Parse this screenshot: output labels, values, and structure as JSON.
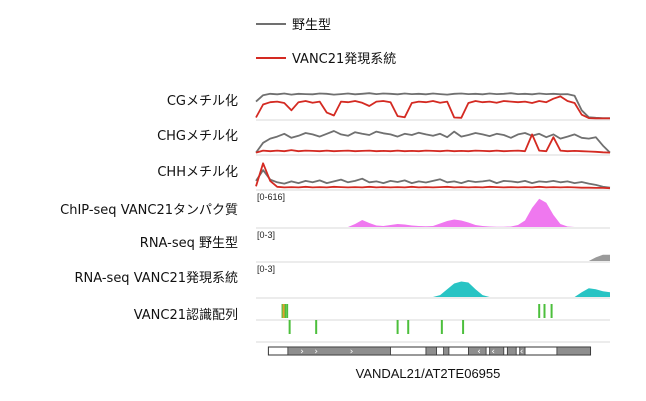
{
  "legend": {
    "wild_type": "野生型",
    "vanc21": "VANC21発現系統"
  },
  "colors": {
    "wild_type": "#707070",
    "vanc21": "#d42a22",
    "chip": "#ef78ef",
    "rna": "#28c4c4",
    "rna_wt": "#9a9a9a",
    "motif": "#4cbf3c",
    "motif_alt": "#e0a030",
    "exon": "#8e8e8e",
    "track_border": "#d8d8d8"
  },
  "tracks": {
    "cg": "CGメチル化",
    "chg": "CHGメチル化",
    "chh": "CHHメチル化",
    "chip": "ChIP-seq VANC21タンパク質",
    "rna_wt": "RNA-seq 野生型",
    "rna_vanc": "RNA-seq VANC21発現系統",
    "motif": "VANC21認識配列"
  },
  "ranges": {
    "chip": "[0-616]",
    "rna_wt": "[0-3]",
    "rna_vanc": "[0-3]"
  },
  "gene_label": "VANDAL21/AT2TE06955",
  "chart_data": {
    "type": "area",
    "x": [
      0,
      2,
      4,
      6,
      8,
      10,
      12,
      14,
      16,
      18,
      20,
      22,
      24,
      26,
      28,
      30,
      32,
      34,
      36,
      38,
      40,
      42,
      44,
      46,
      48,
      50,
      52,
      54,
      56,
      58,
      60,
      62,
      64,
      66,
      68,
      70,
      72,
      74,
      76,
      78,
      80,
      82,
      84,
      86,
      88,
      90,
      92,
      94,
      96,
      98,
      100
    ],
    "xlim": [
      0,
      100
    ],
    "tracks": [
      {
        "name": "CGメチル化",
        "ylim": [
          0,
          1
        ],
        "series": [
          {
            "name": "野生型",
            "values": [
              0.6,
              0.82,
              0.87,
              0.85,
              0.88,
              0.84,
              0.87,
              0.86,
              0.85,
              0.88,
              0.87,
              0.84,
              0.86,
              0.88,
              0.85,
              0.87,
              0.89,
              0.86,
              0.88,
              0.87,
              0.85,
              0.88,
              0.86,
              0.87,
              0.85,
              0.88,
              0.86,
              0.84,
              0.87,
              0.88,
              0.86,
              0.87,
              0.85,
              0.88,
              0.86,
              0.87,
              0.89,
              0.86,
              0.87,
              0.85,
              0.88,
              0.86,
              0.87,
              0.85,
              0.86,
              0.8,
              0.3,
              0.06,
              0.04,
              0.03,
              0.03
            ]
          },
          {
            "name": "VANC21発現系統",
            "values": [
              0.05,
              0.5,
              0.58,
              0.6,
              0.55,
              0.3,
              0.58,
              0.62,
              0.56,
              0.6,
              0.22,
              0.12,
              0.6,
              0.58,
              0.62,
              0.56,
              0.45,
              0.6,
              0.62,
              0.58,
              0.1,
              0.06,
              0.55,
              0.6,
              0.58,
              0.62,
              0.56,
              0.6,
              0.05,
              0.04,
              0.55,
              0.62,
              0.58,
              0.6,
              0.56,
              0.62,
              0.6,
              0.58,
              0.6,
              0.55,
              0.62,
              0.58,
              0.7,
              0.78,
              0.62,
              0.55,
              0.15,
              0.03,
              0.02,
              0.02,
              0.02
            ]
          }
        ]
      },
      {
        "name": "CHGメチル化",
        "ylim": [
          0,
          1
        ],
        "series": [
          {
            "name": "野生型",
            "values": [
              0.05,
              0.4,
              0.55,
              0.62,
              0.72,
              0.58,
              0.65,
              0.75,
              0.7,
              0.62,
              0.72,
              0.82,
              0.7,
              0.65,
              0.78,
              0.72,
              0.68,
              0.8,
              0.74,
              0.7,
              0.62,
              0.72,
              0.68,
              0.76,
              0.7,
              0.65,
              0.72,
              0.6,
              0.8,
              0.62,
              0.68,
              0.75,
              0.7,
              0.64,
              0.72,
              0.68,
              0.58,
              0.7,
              0.75,
              0.65,
              0.72,
              0.6,
              0.7,
              0.55,
              0.62,
              0.7,
              0.58,
              0.55,
              0.6,
              0.3,
              0.05
            ]
          },
          {
            "name": "VANC21発現系統",
            "values": [
              0.05,
              0.12,
              0.1,
              0.12,
              0.1,
              0.14,
              0.1,
              0.12,
              0.11,
              0.1,
              0.12,
              0.1,
              0.11,
              0.12,
              0.1,
              0.11,
              0.12,
              0.1,
              0.11,
              0.1,
              0.12,
              0.1,
              0.11,
              0.1,
              0.12,
              0.11,
              0.1,
              0.12,
              0.1,
              0.11,
              0.1,
              0.12,
              0.11,
              0.1,
              0.12,
              0.1,
              0.11,
              0.12,
              0.1,
              0.7,
              0.12,
              0.1,
              0.6,
              0.12,
              0.1,
              0.11,
              0.1,
              0.09,
              0.08,
              0.06,
              0.05
            ]
          }
        ]
      },
      {
        "name": "CHHメチル化",
        "ylim": [
          0,
          1
        ],
        "series": [
          {
            "name": "野生型",
            "values": [
              0.3,
              0.7,
              0.35,
              0.25,
              0.2,
              0.28,
              0.22,
              0.3,
              0.25,
              0.32,
              0.22,
              0.28,
              0.35,
              0.25,
              0.3,
              0.38,
              0.25,
              0.28,
              0.22,
              0.3,
              0.26,
              0.32,
              0.22,
              0.28,
              0.24,
              0.3,
              0.36,
              0.25,
              0.28,
              0.22,
              0.3,
              0.26,
              0.28,
              0.32,
              0.22,
              0.3,
              0.28,
              0.25,
              0.3,
              0.22,
              0.28,
              0.26,
              0.3,
              0.25,
              0.28,
              0.22,
              0.26,
              0.2,
              0.15,
              0.08,
              0.05
            ]
          },
          {
            "name": "VANC21発現系統",
            "values": [
              0.1,
              0.95,
              0.3,
              0.08,
              0.06,
              0.07,
              0.06,
              0.08,
              0.06,
              0.07,
              0.06,
              0.08,
              0.07,
              0.06,
              0.07,
              0.06,
              0.08,
              0.06,
              0.07,
              0.06,
              0.07,
              0.06,
              0.08,
              0.06,
              0.07,
              0.06,
              0.07,
              0.08,
              0.06,
              0.07,
              0.06,
              0.07,
              0.06,
              0.08,
              0.07,
              0.06,
              0.07,
              0.06,
              0.07,
              0.06,
              0.08,
              0.06,
              0.07,
              0.06,
              0.07,
              0.06,
              0.05,
              0.05,
              0.04,
              0.04,
              0.03
            ]
          }
        ]
      },
      {
        "name": "ChIP-seq VANC21タンパク質",
        "range": "[0-616]",
        "ylim": [
          0,
          616
        ],
        "series": [
          {
            "name": "ChIP-seq VANC21タンパク質",
            "values": [
              0,
              0,
              0,
              0,
              0,
              0,
              0,
              0,
              0,
              0,
              0,
              0,
              0,
              0,
              60,
              140,
              80,
              30,
              20,
              40,
              60,
              50,
              30,
              20,
              15,
              20,
              70,
              120,
              150,
              130,
              90,
              40,
              20,
              10,
              5,
              5,
              10,
              40,
              130,
              380,
              560,
              480,
              240,
              60,
              10,
              0,
              0,
              0,
              0,
              0,
              0
            ]
          }
        ]
      },
      {
        "name": "RNA-seq 野生型",
        "range": "[0-3]",
        "ylim": [
          0,
          3
        ],
        "series": [
          {
            "name": "RNA-seq 野生型",
            "values": [
              0,
              0,
              0,
              0,
              0,
              0,
              0,
              0,
              0,
              0,
              0,
              0,
              0,
              0,
              0,
              0,
              0,
              0,
              0,
              0,
              0,
              0,
              0,
              0,
              0,
              0,
              0,
              0,
              0,
              0,
              0,
              0,
              0,
              0,
              0,
              0,
              0,
              0,
              0,
              0,
              0,
              0,
              0,
              0,
              0,
              0,
              0,
              0,
              0.4,
              0.7,
              0.7
            ]
          }
        ]
      },
      {
        "name": "RNA-seq VANC21発現系統",
        "range": "[0-3]",
        "ylim": [
          0,
          3
        ],
        "series": [
          {
            "name": "RNA-seq VANC21発現系統",
            "values": [
              0,
              0,
              0,
              0,
              0,
              0,
              0,
              0,
              0,
              0,
              0,
              0,
              0,
              0,
              0,
              0,
              0,
              0,
              0,
              0,
              0,
              0,
              0,
              0,
              0,
              0,
              0.2,
              0.8,
              1.4,
              1.6,
              1.5,
              0.8,
              0.2,
              0,
              0,
              0,
              0,
              0,
              0,
              0,
              0,
              0,
              0,
              0,
              0,
              0,
              0.5,
              0.9,
              0.8,
              0.6,
              0.5
            ]
          }
        ]
      },
      {
        "name": "VANC21認識配列",
        "type": "ticks",
        "rows": [
          {
            "positions": [
              7.5,
              8.2,
              8.8,
              80.0,
              81.5,
              83.5
            ],
            "alt_positions": [
              7.8
            ]
          },
          {
            "positions": [
              9.5,
              17.0,
              40.0,
              43.0,
              52.5,
              58.5
            ]
          }
        ]
      }
    ],
    "gene_model": {
      "label": "VANDAL21/AT2TE06955",
      "exons": [
        [
          9,
          38
        ],
        [
          48,
          51
        ],
        [
          53,
          54.5
        ],
        [
          60,
          65
        ],
        [
          66,
          70
        ],
        [
          71,
          73.5
        ],
        [
          74.5,
          76
        ],
        [
          85,
          94.5
        ]
      ],
      "intron_strands": [
        [
          13,
          "›"
        ],
        [
          17,
          "›"
        ],
        [
          27,
          "›"
        ],
        [
          63,
          "‹"
        ],
        [
          67,
          "‹"
        ],
        [
          75,
          "‹"
        ]
      ]
    }
  }
}
